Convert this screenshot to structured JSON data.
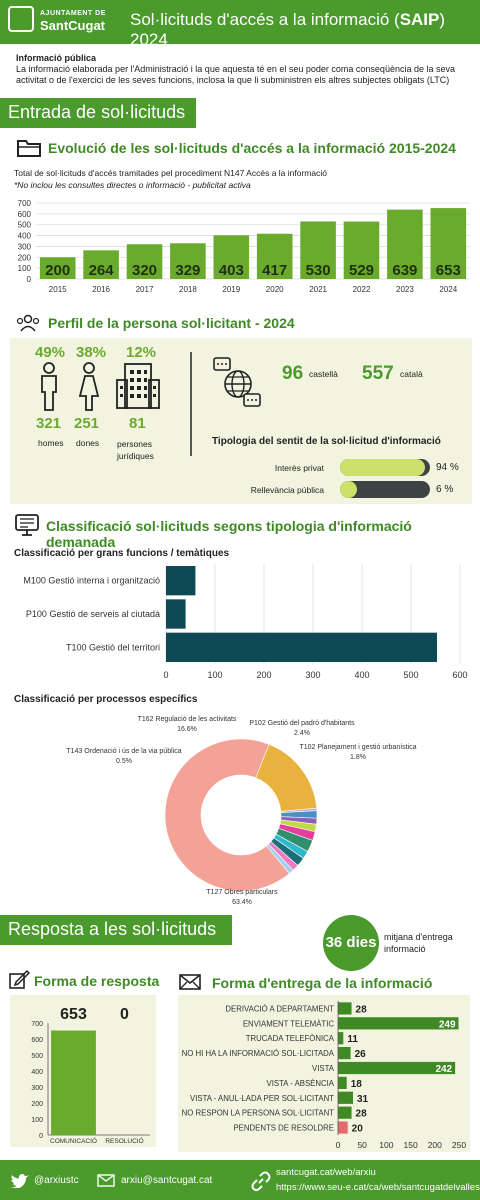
{
  "header": {
    "logo_line1": "AJUNTAMENT DE",
    "logo_line2": "SantCugat",
    "title_main": "Sol·licituds d'accés a la informació (",
    "title_bold": "SAIP",
    "title_end": ") 2024"
  },
  "intro": {
    "heading": "Informació pública",
    "text": "La informació elaborada per l'Administració i la que aquesta té en el seu poder coma conseqüència de la seva activitat o de l'exercici de les seves funcions, inclosa la que li subministren els altres subjectes obligats (LTC)"
  },
  "section_entrada": {
    "band": "Entrada de sol·licituds"
  },
  "evolution": {
    "title": "Evolució de les sol·licituds d'accés a la informació 2015-2024",
    "subtitle": "Total de sol·licituds d'accés tramitades pel procediment N147 Accés a la informació",
    "note": "*No inclou les consultes directes o informació - publicitat activa"
  },
  "profile": {
    "title": "Perfil de la persona sol·licitant - 2024",
    "homes": {
      "pct": "49%",
      "count": "321",
      "label": "homes"
    },
    "dones": {
      "pct": "38%",
      "count": "251",
      "label": "dones"
    },
    "juridiques": {
      "pct": "12%",
      "count": "81",
      "label": "persones jurídiques"
    },
    "castella": {
      "value": "96",
      "label": "castellà"
    },
    "catala": {
      "value": "557",
      "label": "català"
    },
    "tipologia_title": "Tipologia del sentit de la sol·licitud d'informació",
    "tipologia": [
      {
        "label": "Interès privat",
        "value": 94,
        "display": "94 %",
        "color": "#cce06a"
      },
      {
        "label": "Rellevància pública",
        "value": 6,
        "display": "6 %",
        "color": "#cce06a"
      }
    ]
  },
  "classificacio": {
    "title": "Classificació sol·licituds segons tipologia d'informació demanada",
    "functions_title": "Classificació per grans funcions / temàtiques",
    "processes_title": "Classificació per processos específics"
  },
  "section_resposta": {
    "band": "Resposta a les sol·licituds",
    "days": "36 dies",
    "days_label": "mitjana d'entrega informació"
  },
  "forma_resposta": {
    "title": "Forma de resposta"
  },
  "forma_entrega": {
    "title": "Forma d'entrega de la informació"
  },
  "footer": {
    "twitter": "@arxiustc",
    "email": "arxiu@santcugat.cat",
    "web1": "santcugat.cat/web/arxiu",
    "web2": "https://www.seu-e.cat/ca/web/santcugatdelvalles"
  },
  "colors": {
    "green": "#4a9a2c",
    "light_green": "#6aab2e",
    "teal": "#0e4a54",
    "panel": "#f2f4df"
  },
  "chart_data": [
    {
      "type": "bar",
      "categories": [
        "2015",
        "2016",
        "2017",
        "2018",
        "2019",
        "2020",
        "2021",
        "2022",
        "2023",
        "2024"
      ],
      "values": [
        200,
        264,
        320,
        329,
        403,
        417,
        530,
        529,
        639,
        653
      ],
      "ylim": [
        0,
        700
      ],
      "yticks": [
        0,
        100,
        200,
        300,
        400,
        500,
        600,
        700
      ],
      "grid": true
    },
    {
      "type": "bar",
      "orientation": "horizontal",
      "categories": [
        "M100 Gestió interna i organització",
        "P100 Gestió de serveis al ciutadà",
        "T100 Gestió del territori"
      ],
      "values": [
        60,
        40,
        553
      ],
      "xlim": [
        0,
        600
      ],
      "xticks": [
        0,
        100,
        200,
        300,
        400,
        500,
        600
      ]
    },
    {
      "type": "pie",
      "donut": true,
      "labeled": [
        {
          "label": "T162 Regulació de les activitats",
          "pct": "16.6%"
        },
        {
          "label": "P102 Gestió del padró d'habitants",
          "pct": "2.4%"
        },
        {
          "label": "T102 Planejament i gestió urbanística",
          "pct": "1.8%"
        },
        {
          "label": "T143 Ordenació i ús de la via pública",
          "pct": "0.5%"
        },
        {
          "label": "T127 Obres particulars",
          "pct": "63.4%"
        }
      ],
      "slices": [
        {
          "value": 63.4,
          "color": "#f4a196"
        },
        {
          "value": 16.6,
          "color": "#e9b23e"
        },
        {
          "value": 0.5,
          "color": "#c8a1d8"
        },
        {
          "value": 1.5,
          "color": "#4a90c8"
        },
        {
          "value": 1.2,
          "color": "#8e5fb5"
        },
        {
          "value": 1.5,
          "color": "#c2d84a"
        },
        {
          "value": 1.8,
          "color": "#e43fa0"
        },
        {
          "value": 2.4,
          "color": "#2f8f6a"
        },
        {
          "value": 1.6,
          "color": "#2fb8c9"
        },
        {
          "value": 1.8,
          "color": "#1c6f7a"
        },
        {
          "value": 1.3,
          "color": "#f07ac0"
        },
        {
          "value": 1.0,
          "color": "#9fd3f0"
        }
      ]
    },
    {
      "type": "bar",
      "categories": [
        "COMUNICACIÓ",
        "RESOLUCIÓ"
      ],
      "values": [
        653,
        0
      ],
      "ylim": [
        0,
        700
      ],
      "yticks": [
        0,
        100,
        200,
        300,
        400,
        500,
        600,
        700
      ]
    },
    {
      "type": "bar",
      "orientation": "horizontal",
      "categories": [
        "DERIVACIÓ A DEPARTAMENT",
        "ENVIAMENT TELEMÀTIC",
        "TRUCADA TELEFÒNICA",
        "NO HI HA LA INFORMACIÓ SOL·LICITADA",
        "VISTA",
        "VISTA - ABSÈNCIA",
        "VISTA - ANUL·LADA PER SOL·LICITANT",
        "NO RESPON LA PERSONA SOL·LICITANT",
        "PENDENTS DE RESOLDRE"
      ],
      "values": [
        28,
        249,
        11,
        26,
        242,
        18,
        31,
        28,
        20
      ],
      "highlight_last": true,
      "xlim": [
        0,
        250
      ],
      "xticks": [
        0,
        50,
        100,
        150,
        200,
        250
      ]
    }
  ]
}
